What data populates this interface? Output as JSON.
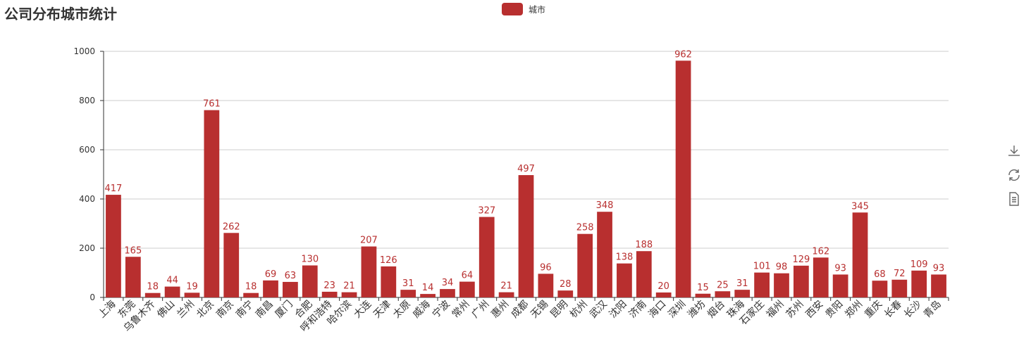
{
  "title": "公司分布城市统计",
  "legend": {
    "label": "城市",
    "color": "#b82f2f"
  },
  "toolbox": {
    "icons": [
      "download-icon",
      "refresh-icon",
      "data-view-icon"
    ]
  },
  "chart_data": {
    "type": "bar",
    "title": "公司分布城市统计",
    "series": [
      {
        "name": "城市",
        "color": "#b82f2f"
      }
    ],
    "categories": [
      "上海",
      "东莞",
      "乌鲁木齐",
      "佛山",
      "兰州",
      "北京",
      "南京",
      "南宁",
      "南昌",
      "厦门",
      "合肥",
      "呼和浩特",
      "哈尔滨",
      "大连",
      "天津",
      "太原",
      "威海",
      "宁波",
      "常州",
      "广州",
      "惠州",
      "成都",
      "无锡",
      "昆明",
      "杭州",
      "武汉",
      "沈阳",
      "济南",
      "海口",
      "深圳",
      "潍坊",
      "烟台",
      "珠海",
      "石家庄",
      "福州",
      "苏州",
      "西安",
      "贵阳",
      "郑州",
      "重庆",
      "长春",
      "长沙",
      "青岛"
    ],
    "values": [
      417,
      165,
      18,
      44,
      19,
      761,
      262,
      18,
      69,
      63,
      130,
      23,
      21,
      207,
      126,
      31,
      14,
      34,
      64,
      327,
      21,
      497,
      96,
      28,
      258,
      348,
      138,
      188,
      20,
      962,
      15,
      25,
      31,
      101,
      98,
      129,
      162,
      93,
      345,
      68,
      72,
      109,
      93
    ],
    "ylim": [
      0,
      1000
    ],
    "yticks": [
      0,
      200,
      400,
      600,
      800,
      1000
    ],
    "grid": true,
    "legend_position": "top-center",
    "data_labels": true
  }
}
